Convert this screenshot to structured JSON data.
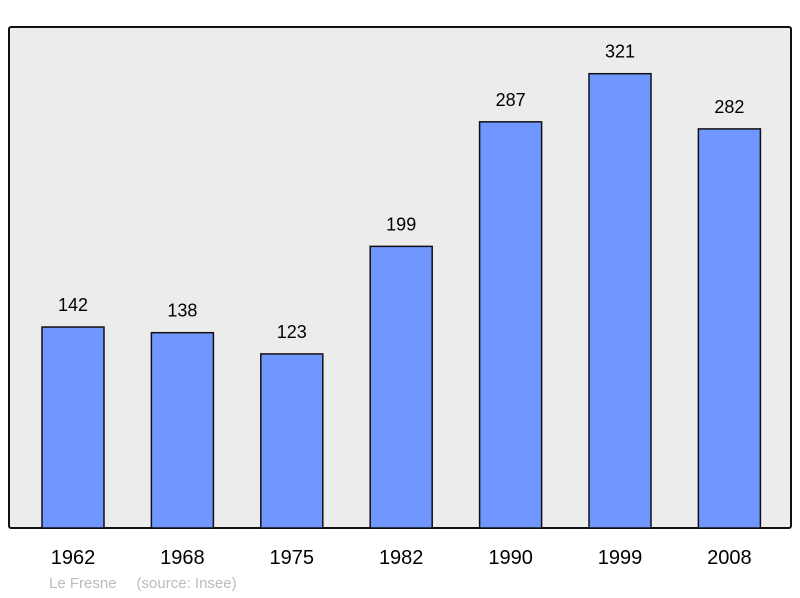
{
  "chart_data": {
    "type": "bar",
    "categories": [
      "1962",
      "1968",
      "1975",
      "1982",
      "1990",
      "1999",
      "2008"
    ],
    "values": [
      142,
      138,
      123,
      199,
      287,
      321,
      282
    ],
    "title": "",
    "xlabel": "",
    "ylabel": "",
    "ylim": [
      0,
      354
    ],
    "grid": false,
    "legend": "none",
    "colors": {
      "bar": "#7096ff",
      "background": "#ececec",
      "border": "#111111"
    }
  },
  "footer": {
    "place": "Le Fresne",
    "source": "(source: Insee)"
  }
}
